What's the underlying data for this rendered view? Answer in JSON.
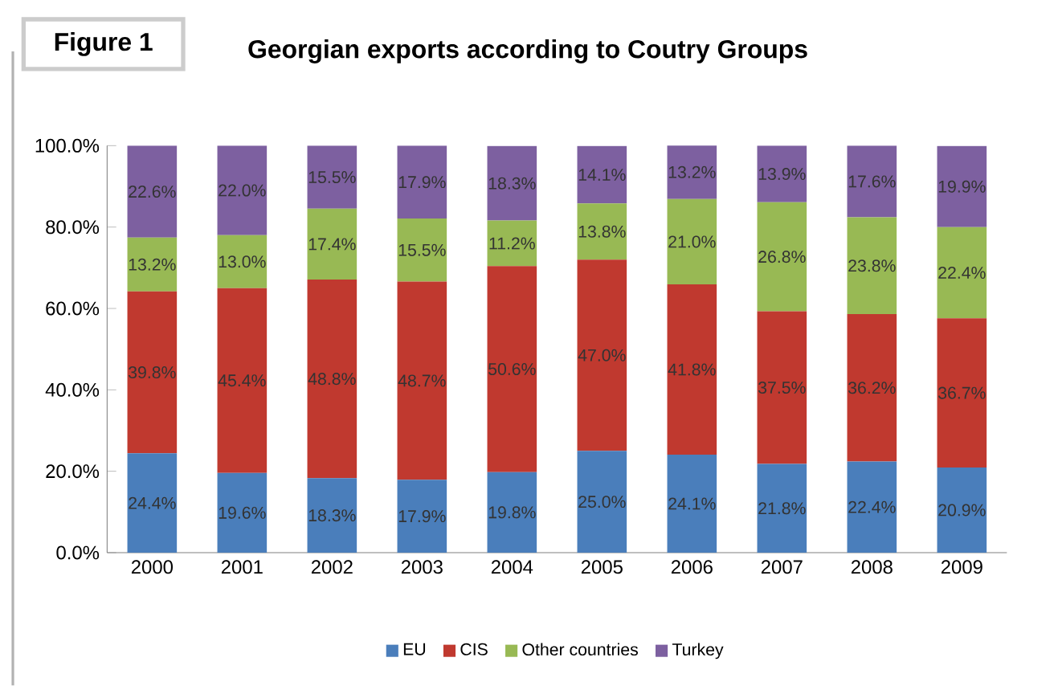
{
  "chart_data": {
    "type": "bar",
    "stacked": true,
    "title": "Georgian exports according to Coutry Groups",
    "annotations": [
      "Figure 1"
    ],
    "categories": [
      "2000",
      "2001",
      "2002",
      "2003",
      "2004",
      "2005",
      "2006",
      "2007",
      "2008",
      "2009"
    ],
    "series": [
      {
        "name": "EU",
        "color": "#4a7ebb",
        "values": [
          24.4,
          19.6,
          18.3,
          17.9,
          19.8,
          25.0,
          24.1,
          21.8,
          22.4,
          20.9
        ],
        "value_labels": [
          "24.4%",
          "19.6%",
          "18.3%",
          "17.9%",
          "19.8%",
          "25.0%",
          "24.1%",
          "21.8%",
          "22.4%",
          "20.9%"
        ]
      },
      {
        "name": "CIS",
        "color": "#c0392f",
        "values": [
          39.8,
          45.4,
          48.8,
          48.7,
          50.6,
          47.0,
          41.8,
          37.5,
          36.2,
          36.7
        ],
        "value_labels": [
          "39.8%",
          "45.4%",
          "48.8%",
          "48.7%",
          "50.6%",
          "47.0%",
          "41.8%",
          "37.5%",
          "36.2%",
          "36.7%"
        ]
      },
      {
        "name": "Other countries",
        "color": "#98b954",
        "values": [
          13.2,
          13.0,
          17.4,
          15.5,
          11.2,
          13.8,
          21.0,
          26.8,
          23.8,
          22.4
        ],
        "value_labels": [
          "13.2%",
          "13.0%",
          "17.4%",
          "15.5%",
          "11.2%",
          "13.8%",
          "21.0%",
          "26.8%",
          "23.8%",
          "22.4%"
        ]
      },
      {
        "name": "Turkey",
        "color": "#7d60a0",
        "values": [
          22.6,
          22.0,
          15.5,
          17.9,
          18.3,
          14.1,
          13.2,
          13.9,
          17.6,
          19.9
        ],
        "value_labels": [
          "22.6%",
          "22.0%",
          "15.5%",
          "17.9%",
          "18.3%",
          "14.1%",
          "13.2%",
          "13.9%",
          "17.6%",
          "19.9%"
        ]
      }
    ],
    "ylim": [
      0,
      100
    ],
    "yticks": [
      {
        "value": 0,
        "label": "0.0%"
      },
      {
        "value": 20,
        "label": "20.0%"
      },
      {
        "value": 40,
        "label": "40.0%"
      },
      {
        "value": 60,
        "label": "60.0%"
      },
      {
        "value": 80,
        "label": "80.0%"
      },
      {
        "value": 100,
        "label": "100.0%"
      }
    ],
    "legend": "bottom"
  }
}
